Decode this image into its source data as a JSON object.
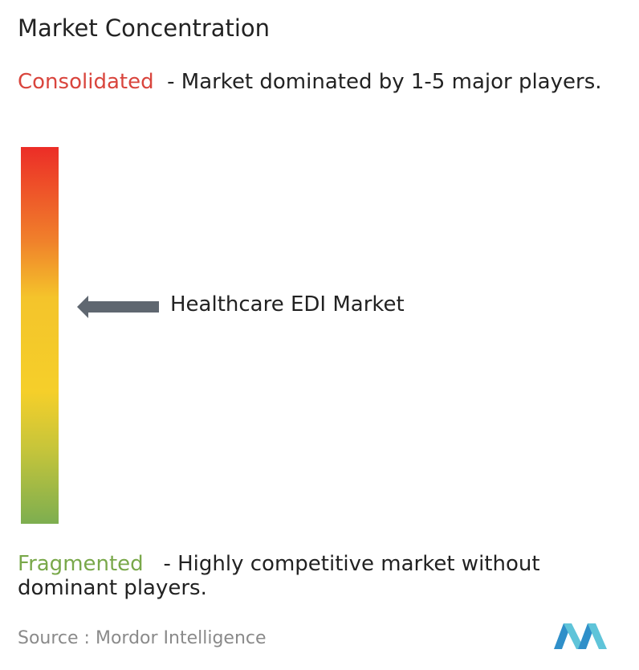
{
  "title": "Market Concentration",
  "consolidated": {
    "label": "Consolidated",
    "description": "- Market dominated by 1-5 major players."
  },
  "market": {
    "label": "Healthcare EDI Market"
  },
  "fragmented": {
    "label": "Fragmented",
    "description": "- Highly competitive market without dominant players."
  },
  "source": {
    "prefix": "Source :",
    "name": "Mordor Intelligence"
  }
}
